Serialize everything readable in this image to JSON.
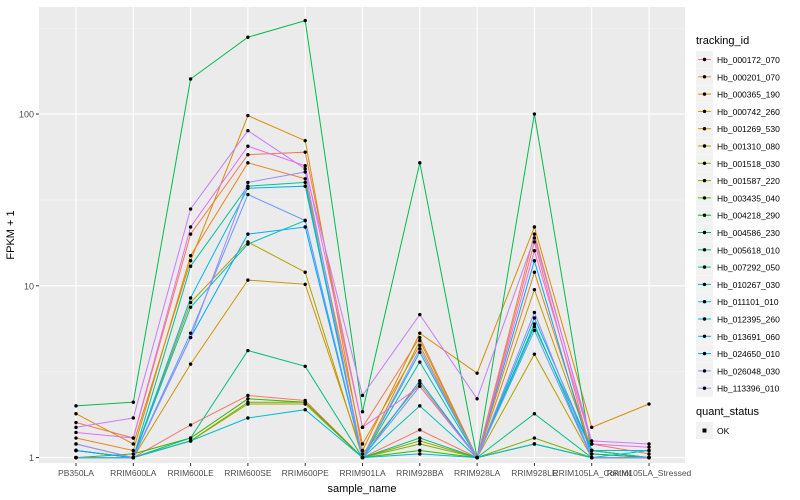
{
  "chart_data": {
    "type": "line",
    "xlabel": "sample_name",
    "ylabel": "FPKM + 1",
    "y_scale": "log10",
    "ylim": [
      0.93,
      420
    ],
    "grid": true,
    "legend_position": "right",
    "categories": [
      "PB350LA",
      "RRIM600LA",
      "RRIM600LE",
      "RRIM600SE",
      "RRIM600PE",
      "RRIM901LA",
      "RRIM928BA",
      "RRIM928LA",
      "RRIM928LE",
      "RRIM105LA_Control",
      "RRIM105LA_Stressed"
    ],
    "y_ticks": [
      1,
      10,
      100
    ],
    "y_tick_labels": [
      "1",
      "10",
      "100"
    ],
    "legend_title": "tracking_id",
    "series": [
      {
        "name": "Hb_000172_070",
        "color": "#F8766D",
        "values": [
          1.1,
          1.0,
          1.55,
          2.3,
          2.15,
          1.0,
          1.45,
          1.0,
          18.0,
          1.05,
          1.0
        ]
      },
      {
        "name": "Hb_000201_070",
        "color": "#F17D51",
        "values": [
          1.6,
          1.3,
          20.0,
          58.0,
          60.0,
          1.5,
          5.0,
          1.0,
          20.0,
          1.2,
          1.05
        ]
      },
      {
        "name": "Hb_000365_190",
        "color": "#E7851E",
        "values": [
          1.3,
          1.1,
          15.0,
          52.0,
          42.0,
          1.2,
          4.5,
          1.0,
          12.0,
          1.1,
          1.0
        ]
      },
      {
        "name": "Hb_000742_260",
        "color": "#D98D00",
        "values": [
          1.8,
          1.2,
          14.0,
          98.0,
          70.0,
          1.1,
          5.3,
          3.1,
          22.0,
          1.5,
          2.05
        ]
      },
      {
        "name": "Hb_001269_530",
        "color": "#C99600",
        "values": [
          1.2,
          1.0,
          3.5,
          10.8,
          10.2,
          1.05,
          2.7,
          1.0,
          9.5,
          1.1,
          1.0
        ]
      },
      {
        "name": "Hb_001310_080",
        "color": "#B59E00",
        "values": [
          1.1,
          1.0,
          8.0,
          18.0,
          12.0,
          1.0,
          4.8,
          1.0,
          4.0,
          1.0,
          1.0
        ]
      },
      {
        "name": "Hb_001518_030",
        "color": "#9DA700",
        "values": [
          1.0,
          1.0,
          1.25,
          2.05,
          2.05,
          1.0,
          1.25,
          1.0,
          1.2,
          1.0,
          1.0
        ]
      },
      {
        "name": "Hb_001587_220",
        "color": "#7CAE00",
        "values": [
          1.0,
          1.0,
          1.25,
          2.1,
          2.1,
          1.0,
          1.2,
          1.0,
          1.3,
          1.0,
          1.0
        ]
      },
      {
        "name": "Hb_003435_040",
        "color": "#39B600",
        "values": [
          1.0,
          1.05,
          1.3,
          2.2,
          2.1,
          1.0,
          1.1,
          1.0,
          1.2,
          1.0,
          1.0
        ]
      },
      {
        "name": "Hb_004218_290",
        "color": "#00BB4E",
        "values": [
          2.0,
          2.1,
          160.0,
          280.0,
          350.0,
          1.85,
          52.0,
          1.0,
          100.0,
          1.05,
          1.0
        ]
      },
      {
        "name": "Hb_004586_230",
        "color": "#00BF7D",
        "values": [
          1.0,
          1.0,
          1.3,
          4.2,
          3.4,
          1.0,
          1.3,
          1.0,
          1.8,
          1.0,
          1.0
        ]
      },
      {
        "name": "Hb_005618_010",
        "color": "#00C19C",
        "values": [
          1.1,
          1.0,
          13.0,
          38.0,
          40.0,
          1.0,
          3.6,
          1.0,
          5.8,
          1.1,
          1.0
        ]
      },
      {
        "name": "Hb_007292_050",
        "color": "#00C0B7",
        "values": [
          1.0,
          1.0,
          7.5,
          17.5,
          24.0,
          1.0,
          2.0,
          1.0,
          6.0,
          1.0,
          1.1
        ]
      },
      {
        "name": "Hb_010267_030",
        "color": "#00BCD1",
        "values": [
          1.0,
          1.0,
          1.25,
          1.7,
          1.9,
          1.0,
          1.05,
          1.0,
          1.2,
          1.0,
          1.0
        ]
      },
      {
        "name": "Hb_011101_010",
        "color": "#00B5E8",
        "values": [
          1.1,
          1.0,
          8.5,
          37.0,
          38.0,
          1.0,
          4.1,
          1.0,
          6.5,
          1.1,
          1.1
        ]
      },
      {
        "name": "Hb_012395_260",
        "color": "#00A9FF",
        "values": [
          1.1,
          1.0,
          5.0,
          20.0,
          22.0,
          1.0,
          2.8,
          1.0,
          14.0,
          1.0,
          1.0
        ]
      },
      {
        "name": "Hb_013691_060",
        "color": "#619CFF",
        "values": [
          1.0,
          1.0,
          5.3,
          34.0,
          24.0,
          1.0,
          2.6,
          1.0,
          5.5,
          1.0,
          1.0
        ]
      },
      {
        "name": "Hb_024650_010",
        "color": "#9A8BFF",
        "values": [
          1.2,
          1.0,
          5.0,
          40.0,
          46.0,
          1.0,
          4.3,
          1.0,
          7.0,
          1.0,
          1.0
        ]
      },
      {
        "name": "Hb_026048_030",
        "color": "#C77CFF",
        "values": [
          1.5,
          1.7,
          28.0,
          80.0,
          48.0,
          2.3,
          6.8,
          2.2,
          19.0,
          1.25,
          1.2
        ]
      },
      {
        "name": "Hb_113396_010",
        "color": "#E76BF3",
        "values": [
          1.4,
          1.3,
          22.0,
          65.0,
          50.0,
          1.5,
          2.6,
          1.0,
          16.0,
          1.2,
          1.15
        ]
      }
    ],
    "legend_entries": [
      "Hb_000172_070",
      "Hb_000201_070",
      "Hb_000365_190",
      "Hb_000742_260",
      "Hb_001269_530",
      "Hb_001310_080",
      "Hb_001518_030",
      "Hb_001587_220",
      "Hb_003435_040",
      "Hb_004218_290",
      "Hb_004586_230",
      "Hb_005618_010",
      "Hb_007292_050",
      "Hb_010267_030",
      "Hb_011101_010",
      "Hb_012395_260",
      "Hb_013691_060",
      "Hb_024650_010",
      "Hb_026048_030",
      "Hb_113396_010"
    ],
    "legend_colors": [
      "#F8766D",
      "#EE8044",
      "#E38900",
      "#D69100",
      "#C69900",
      "#B3A000",
      "#9DA700",
      "#7FAE00",
      "#53B400",
      "#00B825",
      "#00BC59",
      "#00BF7D",
      "#00C19C",
      "#00C1B7",
      "#00BFCF",
      "#00BAE2",
      "#00B2F3",
      "#00A6FF",
      "#7B95FF",
      "#A58AFF"
    ],
    "shape_legend_title": "quant_status",
    "shape_legend_entries": [
      "OK"
    ],
    "shape_legend_colors": [
      "#000000"
    ]
  }
}
